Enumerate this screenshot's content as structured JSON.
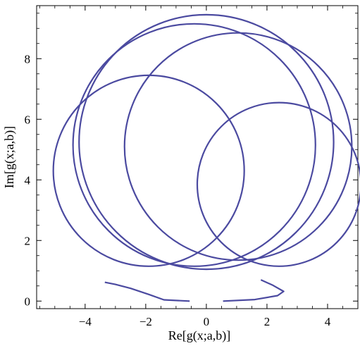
{
  "chart_data": {
    "type": "line",
    "title": "",
    "xlabel": "Re[g(x;a,b)]",
    "ylabel": "Im[g(x;a,b)]",
    "xlim": [
      -5.6,
      5.0
    ],
    "ylim": [
      -0.25,
      9.75
    ],
    "x_ticks": [
      -4,
      -2,
      0,
      2,
      4
    ],
    "y_ticks": [
      0,
      2,
      4,
      6,
      8
    ],
    "x_tick_labels": [
      "−4",
      "−2",
      "0",
      "2",
      "4"
    ],
    "y_tick_labels": [
      "0",
      "2",
      "4",
      "6",
      "8"
    ],
    "grid": false,
    "series": [
      {
        "color": "#4b4aa0",
        "loops": [
          {
            "center": [
              -1.9,
              4.3
            ],
            "radius": 3.15
          },
          {
            "center": [
              -0.4,
              5.15
            ],
            "radius": 4.0
          },
          {
            "center": [
              1.05,
              5.1
            ],
            "radius": 3.75
          },
          {
            "center": [
              0.0,
              5.25
            ],
            "radius": 4.2
          },
          {
            "center": [
              2.4,
              3.85
            ],
            "radius": 2.7
          }
        ],
        "tail": [
          [
            -3.35,
            0.62
          ],
          [
            -3.0,
            0.55
          ],
          [
            -2.5,
            0.42
          ],
          [
            -1.9,
            0.22
          ],
          [
            -1.4,
            0.04
          ],
          [
            -0.55,
            0.0
          ]
        ],
        "tail_right": [
          [
            0.55,
            0.0
          ],
          [
            1.6,
            0.05
          ],
          [
            2.35,
            0.18
          ],
          [
            2.55,
            0.32
          ],
          [
            2.2,
            0.52
          ],
          [
            1.8,
            0.7
          ]
        ]
      }
    ]
  }
}
